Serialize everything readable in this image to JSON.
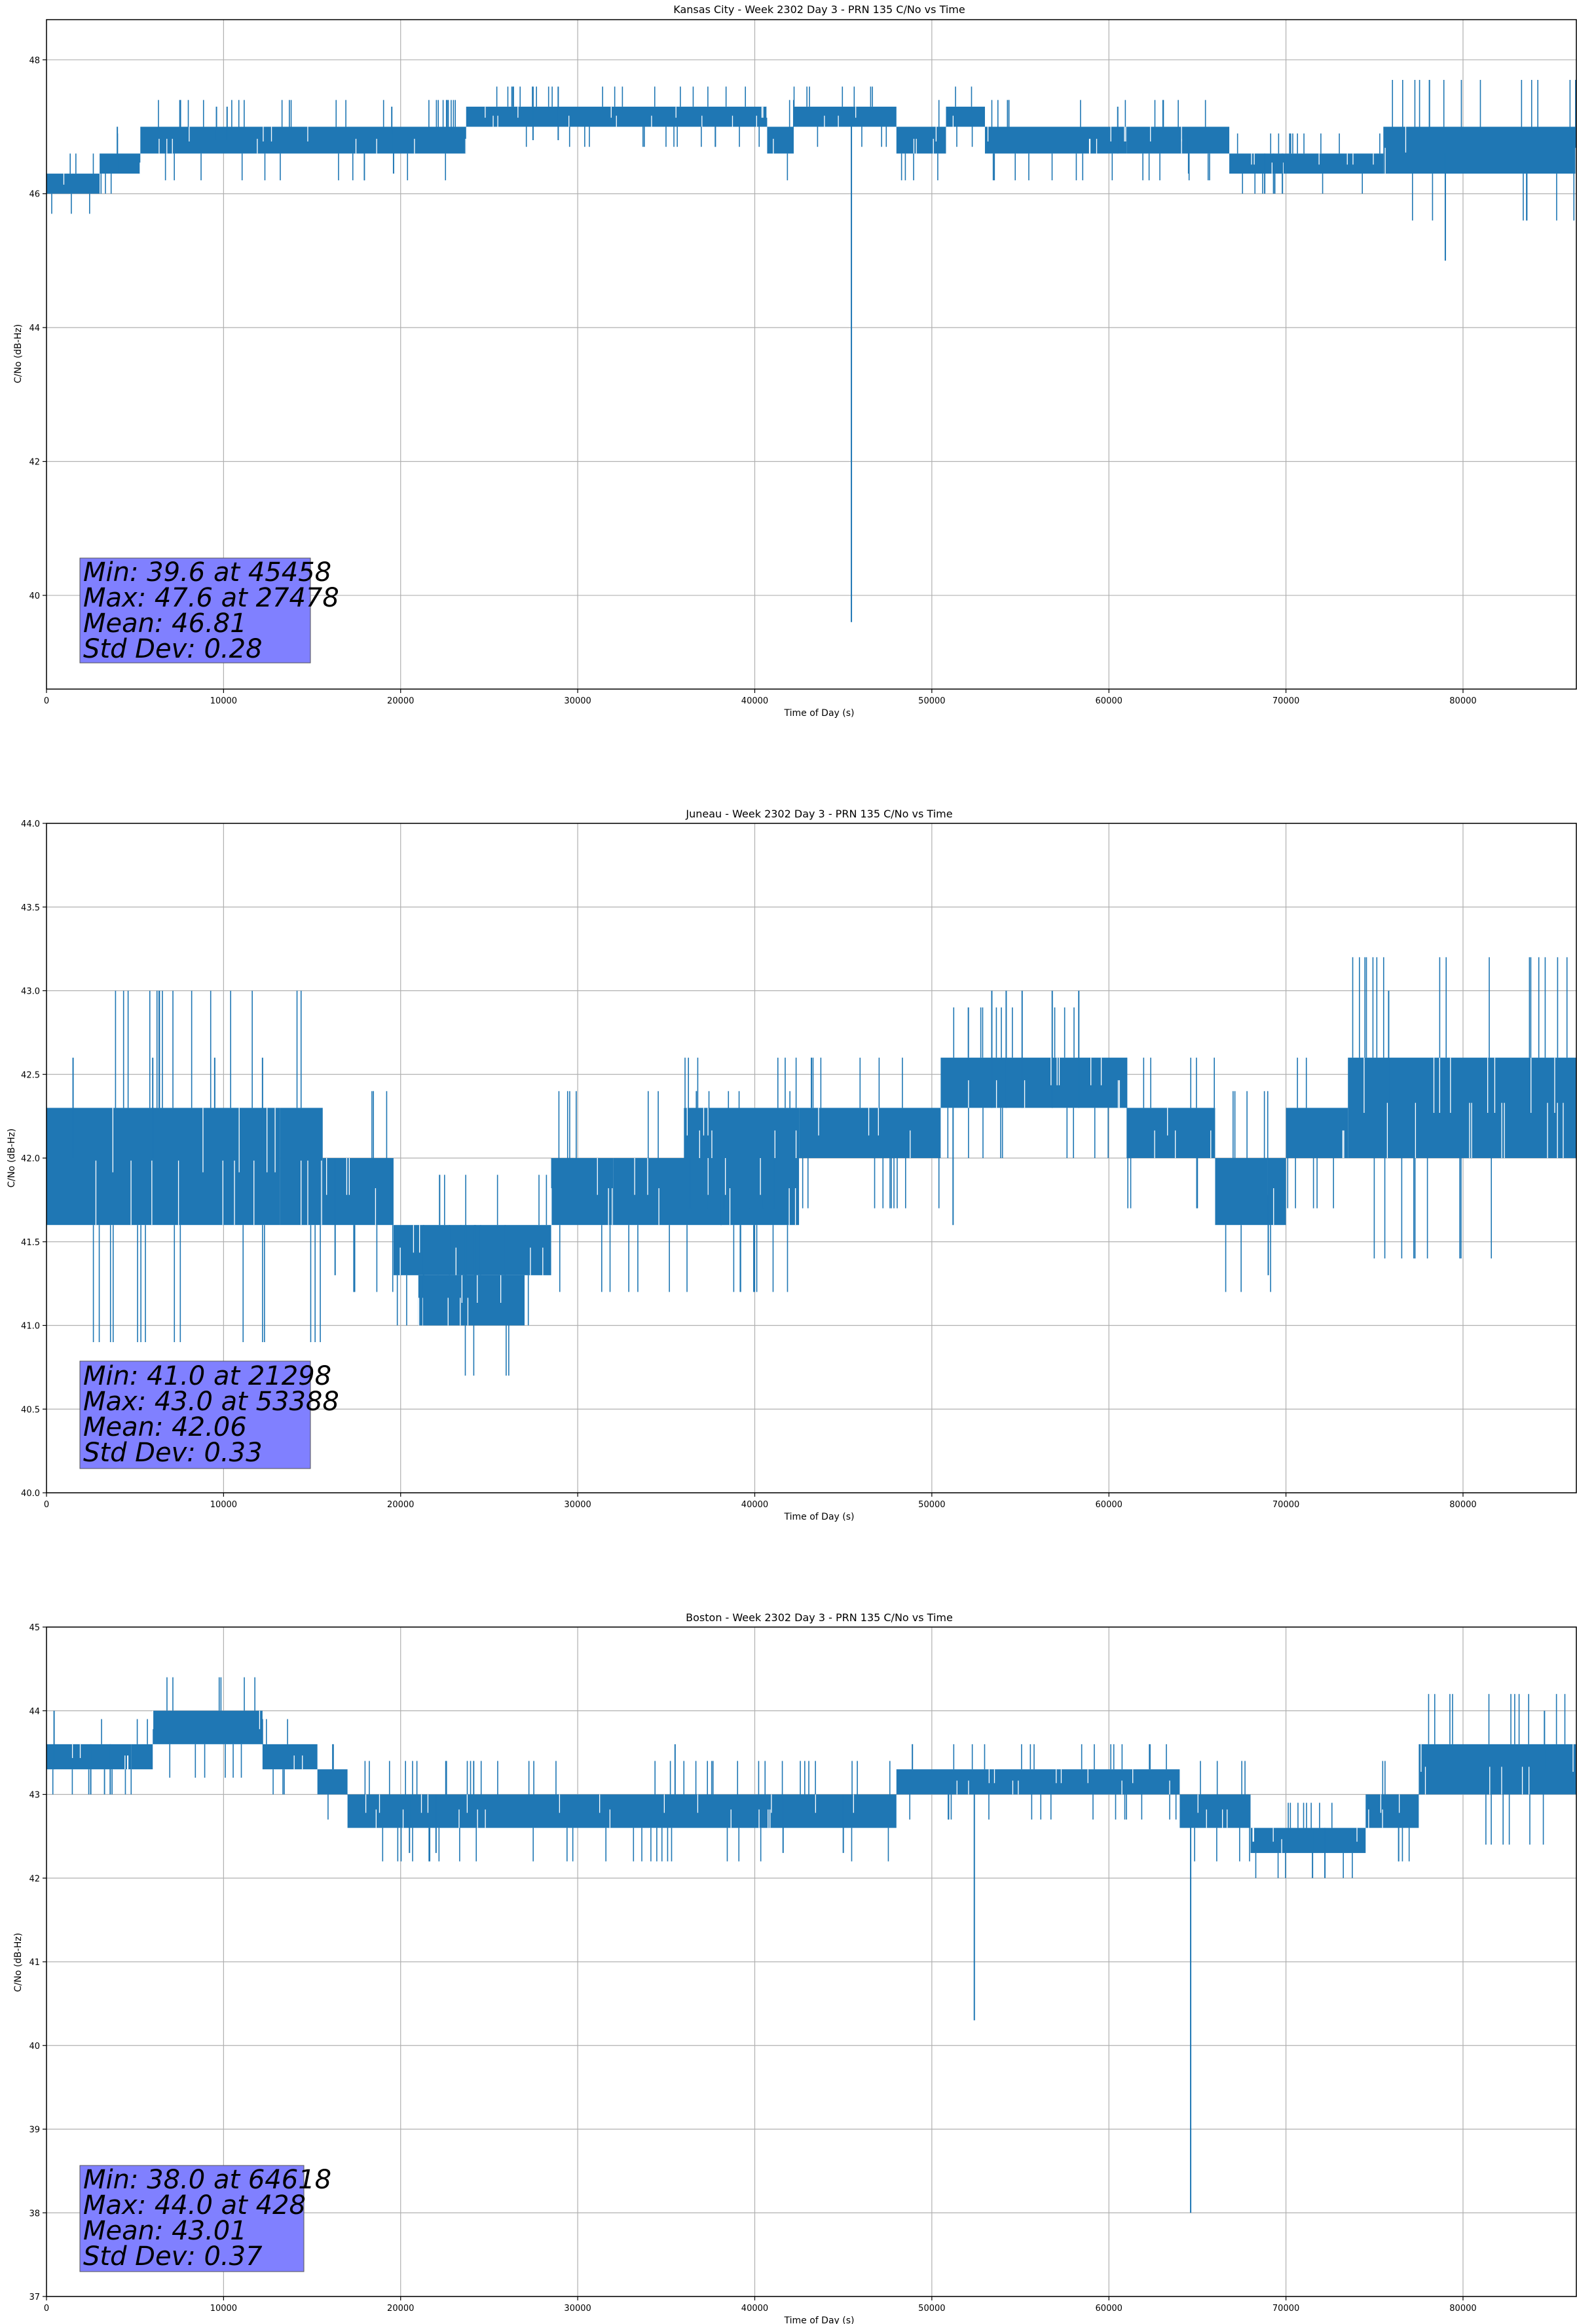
{
  "chart_data": [
    {
      "type": "line",
      "title": "Kansas City - Week 2302 Day 3 - PRN 135 C/No vs Time",
      "xlabel": "Time of Day (s)",
      "ylabel": "C/No (dB-Hz)",
      "xlim": [
        0,
        86400
      ],
      "ylim": [
        38.6,
        48.6
      ],
      "xticks": [
        0,
        10000,
        20000,
        30000,
        40000,
        50000,
        60000,
        70000,
        80000
      ],
      "yticks": [
        40,
        42,
        44,
        46,
        48
      ],
      "ytick_decimals": 0,
      "grid": true,
      "line_color": "#1f77b4",
      "stats": [
        "Min: 39.6 at 45458",
        "Max: 47.6 at 27478",
        "Mean: 46.81",
        "Std Dev: 0.28"
      ],
      "stats_box_color": "#8080ff",
      "series": [
        {
          "segments": [
            {
              "x": [
                0,
                3000
              ],
              "bands": [
                [
                  46.0,
                  46.3
                ]
              ]
            },
            {
              "x": [
                3000,
                5300
              ],
              "bands": [
                [
                  46.3,
                  46.6
                ]
              ]
            },
            {
              "x": [
                5300,
                23700
              ],
              "bands": [
                [
                  46.6,
                  47.0
                ]
              ]
            },
            {
              "x": [
                23700,
                40700
              ],
              "bands": [
                [
                  47.0,
                  47.3
                ]
              ]
            },
            {
              "x": [
                40700,
                42200
              ],
              "bands": [
                [
                  46.6,
                  47.0
                ]
              ]
            },
            {
              "x": [
                42200,
                48000
              ],
              "bands": [
                [
                  47.0,
                  47.3
                ]
              ]
            },
            {
              "x": [
                48000,
                50800
              ],
              "bands": [
                [
                  46.6,
                  47.0
                ]
              ]
            },
            {
              "x": [
                50800,
                53000
              ],
              "bands": [
                [
                  47.0,
                  47.3
                ]
              ]
            },
            {
              "x": [
                53000,
                61000
              ],
              "bands": [
                [
                  46.6,
                  47.0
                ]
              ]
            },
            {
              "x": [
                61000,
                66800
              ],
              "bands": [
                [
                  46.6,
                  47.0
                ]
              ]
            },
            {
              "x": [
                66800,
                75500
              ],
              "bands": [
                [
                  46.3,
                  46.6
                ]
              ]
            },
            {
              "x": [
                75500,
                86400
              ],
              "bands": [
                [
                  46.3,
                  47.0
                ]
              ]
            }
          ],
          "spikes": [
            {
              "x": 45458,
              "y": [
                39.6,
                47.0
              ]
            },
            {
              "x": 79000,
              "y": [
                45.0,
                46.6
              ]
            },
            {
              "x": 27478,
              "y": [
                46.8,
                47.6
              ]
            },
            {
              "x": 28900,
              "y": [
                46.8,
                47.6
              ]
            },
            {
              "x": 19600,
              "y": [
                46.3,
                47.0
              ]
            },
            {
              "x": 64500,
              "y": [
                46.3,
                46.9
              ]
            },
            {
              "x": 68800,
              "y": [
                46.0,
                46.6
              ]
            },
            {
              "x": 69300,
              "y": [
                46.0,
                46.6
              ]
            },
            {
              "x": 69800,
              "y": [
                46.0,
                46.6
              ]
            },
            {
              "x": 4000,
              "y": [
                46.3,
                47.0
              ]
            },
            {
              "x": 9600,
              "y": [
                46.8,
                47.3
              ]
            },
            {
              "x": 10200,
              "y": [
                46.8,
                47.3
              ]
            },
            {
              "x": 19500,
              "y": [
                46.9,
                47.3
              ]
            },
            {
              "x": 60500,
              "y": [
                46.6,
                47.3
              ]
            }
          ],
          "flicker": 0.9
        }
      ]
    },
    {
      "type": "line",
      "title": "Juneau - Week 2302 Day 3 - PRN 135 C/No vs Time",
      "xlabel": "Time of Day (s)",
      "ylabel": "C/No (dB-Hz)",
      "xlim": [
        0,
        86400
      ],
      "ylim": [
        40.0,
        44.0
      ],
      "xticks": [
        0,
        10000,
        20000,
        30000,
        40000,
        50000,
        60000,
        70000,
        80000
      ],
      "yticks": [
        40.0,
        40.5,
        41.0,
        41.5,
        42.0,
        42.5,
        43.0,
        43.5,
        44.0
      ],
      "ytick_decimals": 1,
      "grid": true,
      "line_color": "#1f77b4",
      "stats": [
        "Min: 41.0 at 21298",
        "Max: 43.0 at 53388",
        "Mean: 42.06",
        "Std Dev: 0.33"
      ],
      "stats_box_color": "#8080ff",
      "series": [
        {
          "segments": [
            {
              "x": [
                0,
                13200
              ],
              "bands": [
                [
                  41.6,
                  42.3
                ]
              ]
            },
            {
              "x": [
                13200,
                15600
              ],
              "bands": [
                [
                  41.6,
                  42.3
                ]
              ]
            },
            {
              "x": [
                15600,
                19600
              ],
              "bands": [
                [
                  41.6,
                  42.0
                ]
              ]
            },
            {
              "x": [
                19600,
                28500
              ],
              "bands": [
                [
                  41.3,
                  41.6
                ]
              ]
            },
            {
              "x": [
                21000,
                27000
              ],
              "bands": [
                [
                  41.0,
                  41.3
                ]
              ]
            },
            {
              "x": [
                28500,
                32000
              ],
              "bands": [
                [
                  41.6,
                  42.0
                ]
              ]
            },
            {
              "x": [
                32000,
                42500
              ],
              "bands": [
                [
                  41.6,
                  42.0
                ]
              ]
            },
            {
              "x": [
                36000,
                42500
              ],
              "bands": [
                [
                  42.0,
                  42.3
                ]
              ]
            },
            {
              "x": [
                42500,
                50500
              ],
              "bands": [
                [
                  42.0,
                  42.3
                ]
              ]
            },
            {
              "x": [
                50500,
                61000
              ],
              "bands": [
                [
                  42.3,
                  42.6
                ]
              ]
            },
            {
              "x": [
                61000,
                66000
              ],
              "bands": [
                [
                  42.0,
                  42.3
                ]
              ]
            },
            {
              "x": [
                66000,
                70000
              ],
              "bands": [
                [
                  41.6,
                  42.0
                ]
              ]
            },
            {
              "x": [
                70000,
                73500
              ],
              "bands": [
                [
                  42.0,
                  42.3
                ]
              ]
            },
            {
              "x": [
                73500,
                86400
              ],
              "bands": [
                [
                  42.0,
                  42.6
                ]
              ]
            }
          ],
          "spikes": [
            {
              "x": 53388,
              "y": [
                42.3,
                43.0
              ]
            },
            {
              "x": 54200,
              "y": [
                42.3,
                43.0
              ]
            },
            {
              "x": 55100,
              "y": [
                42.3,
                43.0
              ]
            },
            {
              "x": 56800,
              "y": [
                42.3,
                43.0
              ]
            },
            {
              "x": 58300,
              "y": [
                42.3,
                43.0
              ]
            },
            {
              "x": 75800,
              "y": [
                42.3,
                43.0
              ]
            },
            {
              "x": 21298,
              "y": [
                41.0,
                41.6
              ]
            },
            {
              "x": 69000,
              "y": [
                41.3,
                42.0
              ]
            },
            {
              "x": 1500,
              "y": [
                42.0,
                42.6
              ]
            },
            {
              "x": 6000,
              "y": [
                42.0,
                42.6
              ]
            },
            {
              "x": 9500,
              "y": [
                42.0,
                42.6
              ]
            },
            {
              "x": 12200,
              "y": [
                42.0,
                42.6
              ]
            },
            {
              "x": 43200,
              "y": [
                42.3,
                42.6
              ]
            },
            {
              "x": 51200,
              "y": [
                41.6,
                42.3
              ]
            },
            {
              "x": 38100,
              "y": [
                41.6,
                42.0
              ]
            },
            {
              "x": 16300,
              "y": [
                41.3,
                42.0
              ]
            }
          ],
          "flicker": 0.85
        }
      ]
    },
    {
      "type": "line",
      "title": "Boston - Week 2302 Day 3 - PRN 135 C/No vs Time",
      "xlabel": "Time of Day (s)",
      "ylabel": "C/No (dB-Hz)",
      "xlim": [
        0,
        86400
      ],
      "ylim": [
        37,
        45
      ],
      "xticks": [
        0,
        10000,
        20000,
        30000,
        40000,
        50000,
        60000,
        70000,
        80000
      ],
      "yticks": [
        37,
        38,
        39,
        40,
        41,
        42,
        43,
        44,
        45
      ],
      "ytick_decimals": 0,
      "grid": true,
      "line_color": "#1f77b4",
      "stats": [
        "Min: 38.0 at 64618",
        "Max: 44.0 at 428",
        "Mean: 43.01",
        "Std Dev: 0.37"
      ],
      "stats_box_color": "#8080ff",
      "series": [
        {
          "segments": [
            {
              "x": [
                0,
                4800
              ],
              "bands": [
                [
                  43.3,
                  43.6
                ]
              ]
            },
            {
              "x": [
                4800,
                6000
              ],
              "bands": [
                [
                  43.3,
                  43.6
                ]
              ]
            },
            {
              "x": [
                6000,
                12200
              ],
              "bands": [
                [
                  43.6,
                  44.0
                ]
              ]
            },
            {
              "x": [
                12200,
                15300
              ],
              "bands": [
                [
                  43.3,
                  43.6
                ]
              ]
            },
            {
              "x": [
                15300,
                17000
              ],
              "bands": [
                [
                  43.0,
                  43.3
                ]
              ]
            },
            {
              "x": [
                17000,
                48000
              ],
              "bands": [
                [
                  42.6,
                  43.0
                ]
              ]
            },
            {
              "x": [
                48000,
                64000
              ],
              "bands": [
                [
                  43.0,
                  43.3
                ]
              ]
            },
            {
              "x": [
                64000,
                68000
              ],
              "bands": [
                [
                  42.6,
                  43.0
                ]
              ]
            },
            {
              "x": [
                68000,
                74500
              ],
              "bands": [
                [
                  42.3,
                  42.6
                ]
              ]
            },
            {
              "x": [
                74500,
                77500
              ],
              "bands": [
                [
                  42.6,
                  43.0
                ]
              ]
            },
            {
              "x": [
                77500,
                86400
              ],
              "bands": [
                [
                  43.0,
                  43.6
                ]
              ]
            }
          ],
          "spikes": [
            {
              "x": 64618,
              "y": [
                38.0,
                43.0
              ]
            },
            {
              "x": 52400,
              "y": [
                40.3,
                43.0
              ]
            },
            {
              "x": 428,
              "y": [
                43.3,
                44.0
              ]
            },
            {
              "x": 84600,
              "y": [
                43.3,
                44.0
              ]
            },
            {
              "x": 71500,
              "y": [
                42.0,
                42.6
              ]
            },
            {
              "x": 72200,
              "y": [
                42.0,
                42.6
              ]
            },
            {
              "x": 20500,
              "y": [
                42.3,
                43.0
              ]
            },
            {
              "x": 22000,
              "y": [
                42.3,
                43.0
              ]
            },
            {
              "x": 35500,
              "y": [
                43.0,
                43.6
              ]
            },
            {
              "x": 41600,
              "y": [
                42.3,
                43.0
              ]
            },
            {
              "x": 45000,
              "y": [
                42.3,
                43.0
              ]
            },
            {
              "x": 2500,
              "y": [
                43.0,
                43.6
              ]
            },
            {
              "x": 3600,
              "y": [
                43.0,
                43.6
              ]
            }
          ],
          "flicker": 0.9
        }
      ]
    }
  ]
}
